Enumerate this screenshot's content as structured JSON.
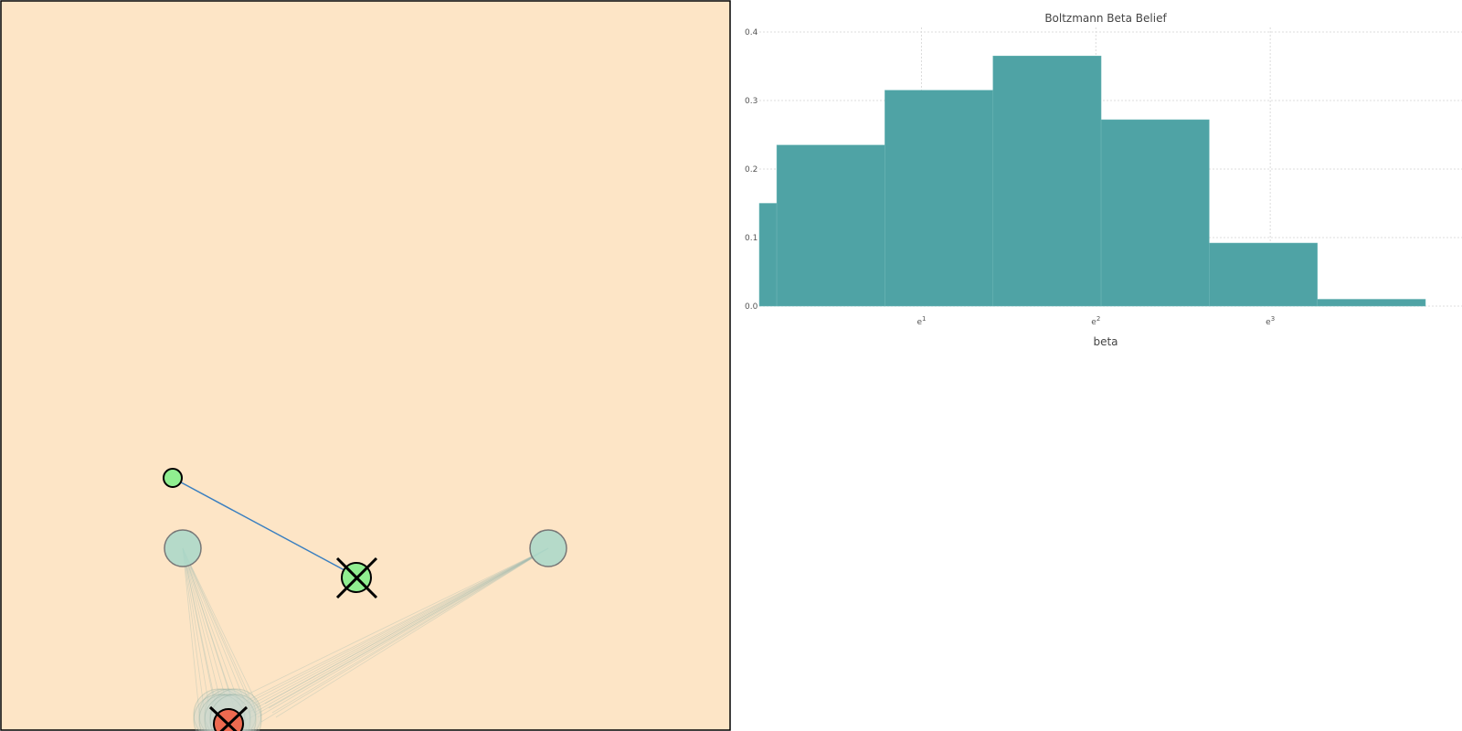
{
  "simulation": {
    "background_color": "#fde5c6",
    "border_color": "#000000",
    "agent_color": "#90ee90",
    "goal_color": "#add8c9",
    "robot_color": "#ee6a50",
    "path_color": "#3a7fc0"
  },
  "chart_data": {
    "type": "bar",
    "title": "Boltzmann Beta Belief",
    "xlabel": "beta",
    "ylabel": "",
    "x_scale": "log",
    "ylim": [
      0,
      0.4
    ],
    "y_ticks": [
      "0.0",
      "0.1",
      "0.2",
      "0.3",
      "0.4"
    ],
    "x_ticks": [
      {
        "base": "e",
        "exp": "1"
      },
      {
        "base": "e",
        "exp": "2"
      },
      {
        "base": "e",
        "exp": "3"
      }
    ],
    "bar_color": "#4fa3a5",
    "grid": true,
    "bins": [
      {
        "ln_start": 0.07,
        "ln_end": 0.17,
        "value": 0.15
      },
      {
        "ln_start": 0.17,
        "ln_end": 0.79,
        "value": 0.235
      },
      {
        "ln_start": 0.79,
        "ln_end": 1.41,
        "value": 0.315
      },
      {
        "ln_start": 1.41,
        "ln_end": 2.03,
        "value": 0.365
      },
      {
        "ln_start": 2.03,
        "ln_end": 2.65,
        "value": 0.272
      },
      {
        "ln_start": 2.65,
        "ln_end": 3.27,
        "value": 0.092
      },
      {
        "ln_start": 3.27,
        "ln_end": 3.89,
        "value": 0.01
      }
    ]
  }
}
